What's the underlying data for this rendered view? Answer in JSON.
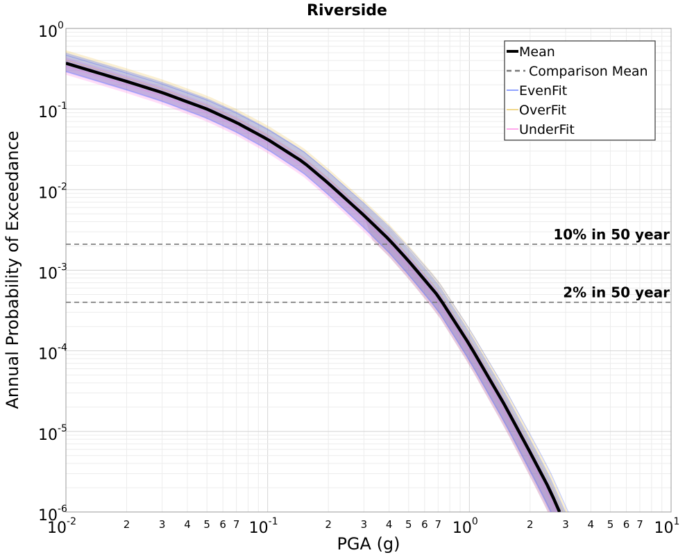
{
  "chart_data": {
    "type": "line",
    "title": "Riverside",
    "xlabel": "PGA (g)",
    "ylabel": "Annual Probability of Exceedance",
    "xscale": "log",
    "yscale": "log",
    "xlim": [
      0.01,
      10
    ],
    "ylim": [
      1e-06,
      1
    ],
    "grid": true,
    "legend_position": "top-right",
    "x_major_ticks": [
      {
        "base": "10",
        "exp": "-2"
      },
      {
        "base": "10",
        "exp": "-1"
      },
      {
        "base": "10",
        "exp": "0"
      },
      {
        "base": "10",
        "exp": "1"
      }
    ],
    "x_minor_tick_labels": [
      "2",
      "3",
      "4",
      "5",
      "6",
      "7"
    ],
    "y_major_ticks": [
      {
        "base": "10",
        "exp": "0"
      },
      {
        "base": "10",
        "exp": "-1"
      },
      {
        "base": "10",
        "exp": "-2"
      },
      {
        "base": "10",
        "exp": "-3"
      },
      {
        "base": "10",
        "exp": "-4"
      },
      {
        "base": "10",
        "exp": "-5"
      },
      {
        "base": "10",
        "exp": "-6"
      }
    ],
    "series": [
      {
        "name": "Mean",
        "style": "solid",
        "color": "#000000",
        "x": [
          0.01,
          0.02,
          0.03,
          0.05,
          0.07,
          0.1,
          0.15,
          0.2,
          0.3,
          0.4,
          0.5,
          0.7,
          1.0,
          1.5,
          2.0,
          2.5,
          2.8
        ],
        "y": [
          0.37,
          0.22,
          0.16,
          0.1,
          0.068,
          0.042,
          0.022,
          0.012,
          0.0048,
          0.0024,
          0.0013,
          0.00048,
          0.00012,
          2.1e-05,
          5.5e-06,
          1.9e-06,
          1e-06
        ]
      },
      {
        "name": "Comparison Mean",
        "style": "dashed",
        "color": "#777777",
        "x": [
          0.01,
          0.02,
          0.03,
          0.05,
          0.07,
          0.1,
          0.15,
          0.2,
          0.3,
          0.4,
          0.5,
          0.7,
          1.0,
          1.5,
          2.0,
          2.5,
          2.8
        ],
        "y": [
          0.37,
          0.22,
          0.16,
          0.1,
          0.068,
          0.042,
          0.022,
          0.012,
          0.0048,
          0.0024,
          0.0013,
          0.00048,
          0.00012,
          2.1e-05,
          5.5e-06,
          1.9e-06,
          1e-06
        ]
      },
      {
        "name": "EvenFit",
        "style": "band",
        "color": "#3b5bff"
      },
      {
        "name": "OverFit",
        "style": "band",
        "color": "#e6b830"
      },
      {
        "name": "UnderFit",
        "style": "band",
        "color": "#ff66dd"
      }
    ],
    "band_spread": {
      "upper_factor_at_low_x": 1.45,
      "lower_factor_at_low_x": 0.72,
      "upper_factor_at_high_x": 1.7,
      "lower_factor_at_high_x": 0.45
    },
    "reference_lines": [
      {
        "label": "10% in 50 year",
        "y": 0.0021
      },
      {
        "label": "2% in 50 year",
        "y": 0.0004
      }
    ]
  }
}
